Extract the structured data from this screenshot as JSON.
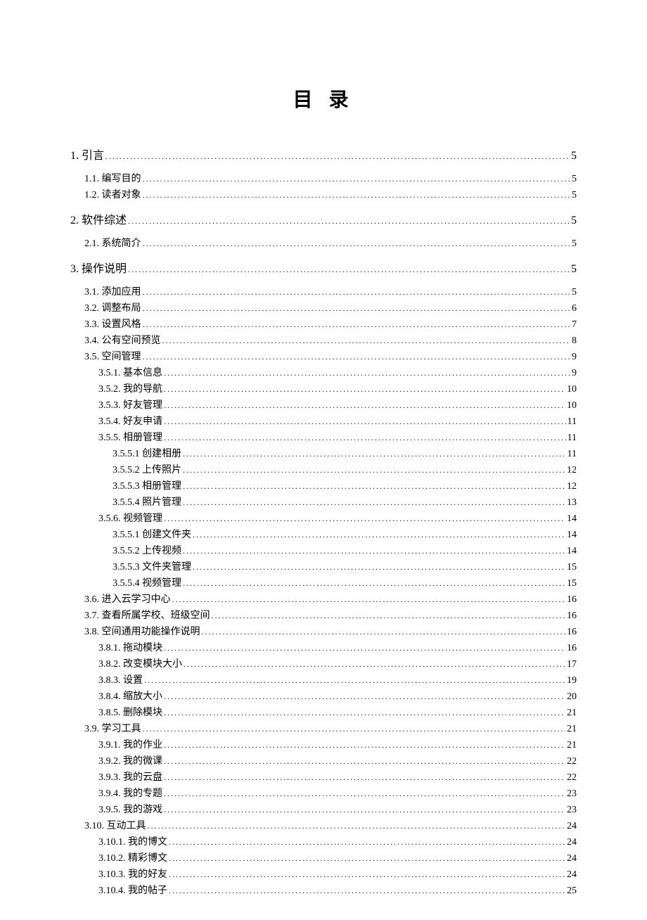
{
  "title": "目 录",
  "entries": [
    {
      "level": 1,
      "label": "1. 引言",
      "page": "5"
    },
    {
      "level": 2,
      "label": "1.1. 编写目的",
      "page": "5"
    },
    {
      "level": 2,
      "label": "1.2. 读者对象",
      "page": "5"
    },
    {
      "level": 1,
      "label": "2. 软件综述",
      "page": "5"
    },
    {
      "level": 2,
      "label": "2.1. 系统简介",
      "page": "5"
    },
    {
      "level": 1,
      "label": "3. 操作说明",
      "page": "5"
    },
    {
      "level": 2,
      "label": "3.1. 添加应用",
      "page": "5"
    },
    {
      "level": 2,
      "label": "3.2. 调整布局",
      "page": "6"
    },
    {
      "level": 2,
      "label": "3.3. 设置风格",
      "page": "7"
    },
    {
      "level": 2,
      "label": "3.4. 公有空间预览",
      "page": "8"
    },
    {
      "level": 2,
      "label": "3.5. 空间管理",
      "page": "9"
    },
    {
      "level": 3,
      "label": "3.5.1. 基本信息",
      "page": "9"
    },
    {
      "level": 3,
      "label": "3.5.2. 我的导航",
      "page": "10"
    },
    {
      "level": 3,
      "label": "3.5.3. 好友管理",
      "page": "10"
    },
    {
      "level": 3,
      "label": "3.5.4. 好友申请",
      "page": "11"
    },
    {
      "level": 3,
      "label": "3.5.5. 相册管理",
      "page": "11"
    },
    {
      "level": 4,
      "label": "3.5.5.1 创建相册",
      "page": "11"
    },
    {
      "level": 4,
      "label": "3.5.5.2 上传照片",
      "page": "12"
    },
    {
      "level": 4,
      "label": "3.5.5.3 相册管理",
      "page": "12"
    },
    {
      "level": 4,
      "label": "3.5.5.4 照片管理",
      "page": "13"
    },
    {
      "level": 3,
      "label": "3.5.6. 视频管理",
      "page": "14"
    },
    {
      "level": 4,
      "label": "3.5.5.1 创建文件夹",
      "page": "14"
    },
    {
      "level": 4,
      "label": "3.5.5.2 上传视频",
      "page": "14"
    },
    {
      "level": 4,
      "label": "3.5.5.3 文件夹管理",
      "page": "15"
    },
    {
      "level": 4,
      "label": "3.5.5.4 视频管理",
      "page": "15"
    },
    {
      "level": 2,
      "label": "3.6. 进入云学习中心",
      "page": "16"
    },
    {
      "level": 2,
      "label": "3.7. 查看所属学校、班级空间",
      "page": "16"
    },
    {
      "level": 2,
      "label": "3.8. 空间通用功能操作说明",
      "page": "16"
    },
    {
      "level": 3,
      "label": "3.8.1. 拖动模块",
      "page": "16"
    },
    {
      "level": 3,
      "label": "3.8.2. 改变模块大小",
      "page": "17"
    },
    {
      "level": 3,
      "label": "3.8.3. 设置",
      "page": "19"
    },
    {
      "level": 3,
      "label": "3.8.4. 缩放大小",
      "page": "20"
    },
    {
      "level": 3,
      "label": "3.8.5. 删除模块",
      "page": "21"
    },
    {
      "level": 2,
      "label": "3.9. 学习工具",
      "page": "21"
    },
    {
      "level": 3,
      "label": "3.9.1. 我的作业",
      "page": "21"
    },
    {
      "level": 3,
      "label": "3.9.2. 我的微课",
      "page": "22"
    },
    {
      "level": 3,
      "label": "3.9.3. 我的云盘",
      "page": "22"
    },
    {
      "level": 3,
      "label": "3.9.4. 我的专题",
      "page": "23"
    },
    {
      "level": 3,
      "label": "3.9.5. 我的游戏",
      "page": "23"
    },
    {
      "level": 2,
      "label": "3.10. 互动工具",
      "page": "24"
    },
    {
      "level": 3,
      "label": "3.10.1. 我的博文",
      "page": "24"
    },
    {
      "level": 3,
      "label": "3.10.2. 精彩博文",
      "page": "24"
    },
    {
      "level": 3,
      "label": "3.10.3. 我的好友",
      "page": "24"
    },
    {
      "level": 3,
      "label": "3.10.4. 我的帖子",
      "page": "25"
    }
  ]
}
